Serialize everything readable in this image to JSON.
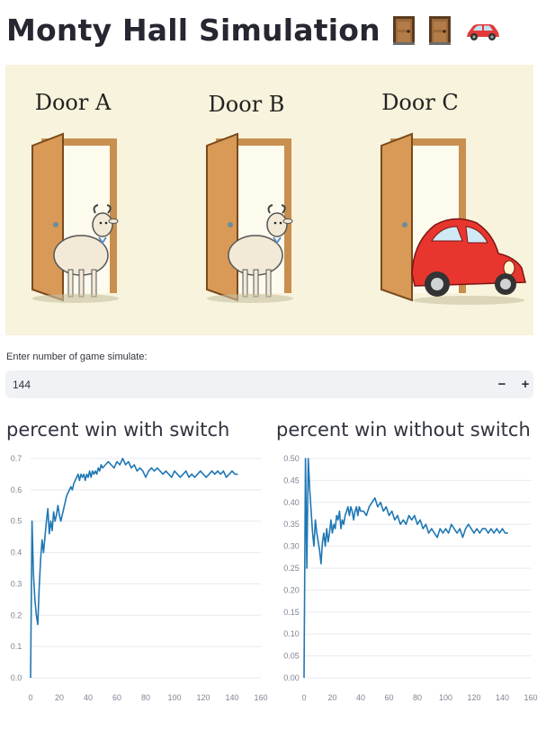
{
  "page": {
    "title": "Monty Hall Simulation",
    "title_icons": [
      "door-icon",
      "door-icon",
      "car-icon"
    ]
  },
  "illustration": {
    "doors": [
      {
        "label": "Door A",
        "behind": "goat"
      },
      {
        "label": "Door B",
        "behind": "goat"
      },
      {
        "label": "Door C",
        "behind": "car"
      }
    ]
  },
  "input": {
    "label": "Enter number of game simulate:",
    "value": "144",
    "minus_label": "−",
    "plus_label": "+"
  },
  "colors": {
    "line": "#1f77b4",
    "background_illustration": "#f8f3dc",
    "input_background": "#f0f2f6"
  },
  "chart_data": [
    {
      "type": "line",
      "title": "percent win with switch",
      "xlabel": "",
      "ylabel": "",
      "xlim": [
        0,
        160
      ],
      "ylim": [
        0,
        0.7
      ],
      "xticks": [
        "0",
        "20",
        "40",
        "60",
        "80",
        "100",
        "120",
        "140",
        "160"
      ],
      "yticks": [
        "0.0",
        "0.1",
        "0.2",
        "0.3",
        "0.4",
        "0.5",
        "0.6",
        "0.7"
      ],
      "grid": true,
      "x": [
        0,
        1,
        2,
        3,
        4,
        5,
        6,
        7,
        8,
        9,
        10,
        11,
        12,
        13,
        14,
        15,
        16,
        17,
        18,
        19,
        20,
        21,
        22,
        23,
        24,
        25,
        26,
        27,
        28,
        29,
        30,
        31,
        32,
        33,
        34,
        35,
        36,
        37,
        38,
        39,
        40,
        41,
        42,
        43,
        44,
        45,
        46,
        47,
        48,
        49,
        50,
        52,
        54,
        56,
        58,
        60,
        62,
        64,
        66,
        68,
        70,
        72,
        74,
        76,
        78,
        80,
        82,
        84,
        86,
        88,
        90,
        92,
        94,
        96,
        98,
        100,
        102,
        104,
        106,
        108,
        110,
        112,
        114,
        116,
        118,
        120,
        122,
        124,
        126,
        128,
        130,
        132,
        134,
        136,
        138,
        140,
        142,
        144
      ],
      "y": [
        0.0,
        0.5,
        0.33,
        0.25,
        0.2,
        0.17,
        0.29,
        0.38,
        0.44,
        0.4,
        0.45,
        0.5,
        0.54,
        0.46,
        0.5,
        0.47,
        0.53,
        0.5,
        0.52,
        0.55,
        0.52,
        0.5,
        0.52,
        0.54,
        0.56,
        0.58,
        0.59,
        0.6,
        0.61,
        0.6,
        0.62,
        0.63,
        0.64,
        0.65,
        0.63,
        0.65,
        0.64,
        0.65,
        0.63,
        0.65,
        0.64,
        0.66,
        0.64,
        0.66,
        0.65,
        0.66,
        0.65,
        0.67,
        0.66,
        0.68,
        0.67,
        0.68,
        0.69,
        0.68,
        0.67,
        0.69,
        0.68,
        0.7,
        0.68,
        0.69,
        0.67,
        0.68,
        0.66,
        0.67,
        0.66,
        0.64,
        0.66,
        0.67,
        0.66,
        0.67,
        0.66,
        0.65,
        0.66,
        0.65,
        0.64,
        0.66,
        0.65,
        0.64,
        0.65,
        0.66,
        0.64,
        0.65,
        0.64,
        0.65,
        0.66,
        0.65,
        0.64,
        0.65,
        0.66,
        0.65,
        0.66,
        0.65,
        0.66,
        0.64,
        0.65,
        0.66,
        0.65,
        0.65
      ]
    },
    {
      "type": "line",
      "title": "percent win without switch",
      "xlabel": "",
      "ylabel": "",
      "xlim": [
        0,
        160
      ],
      "ylim": [
        0,
        0.5
      ],
      "xticks": [
        "0",
        "20",
        "40",
        "60",
        "80",
        "100",
        "120",
        "140",
        "160"
      ],
      "yticks": [
        "0.00",
        "0.05",
        "0.10",
        "0.15",
        "0.20",
        "0.25",
        "0.30",
        "0.35",
        "0.40",
        "0.45",
        "0.50"
      ],
      "grid": true,
      "x": [
        0,
        1,
        2,
        3,
        4,
        5,
        6,
        7,
        8,
        9,
        10,
        11,
        12,
        13,
        14,
        15,
        16,
        17,
        18,
        19,
        20,
        21,
        22,
        23,
        24,
        25,
        26,
        27,
        28,
        29,
        30,
        31,
        32,
        33,
        34,
        35,
        36,
        37,
        38,
        39,
        40,
        42,
        44,
        46,
        48,
        50,
        52,
        54,
        56,
        58,
        60,
        62,
        64,
        66,
        68,
        70,
        72,
        74,
        76,
        78,
        80,
        82,
        84,
        86,
        88,
        90,
        92,
        94,
        96,
        98,
        100,
        102,
        104,
        106,
        108,
        110,
        112,
        114,
        116,
        118,
        120,
        122,
        124,
        126,
        128,
        130,
        132,
        134,
        136,
        138,
        140,
        142,
        144
      ],
      "y": [
        0.0,
        0.5,
        0.25,
        0.5,
        0.43,
        0.38,
        0.33,
        0.3,
        0.36,
        0.33,
        0.31,
        0.29,
        0.26,
        0.31,
        0.33,
        0.3,
        0.34,
        0.31,
        0.33,
        0.36,
        0.33,
        0.35,
        0.34,
        0.37,
        0.36,
        0.38,
        0.34,
        0.36,
        0.35,
        0.37,
        0.38,
        0.39,
        0.37,
        0.39,
        0.38,
        0.36,
        0.38,
        0.39,
        0.37,
        0.39,
        0.38,
        0.38,
        0.37,
        0.39,
        0.4,
        0.41,
        0.39,
        0.4,
        0.38,
        0.39,
        0.37,
        0.38,
        0.36,
        0.37,
        0.35,
        0.36,
        0.35,
        0.37,
        0.36,
        0.37,
        0.35,
        0.36,
        0.34,
        0.35,
        0.33,
        0.34,
        0.33,
        0.32,
        0.34,
        0.33,
        0.34,
        0.33,
        0.35,
        0.34,
        0.33,
        0.34,
        0.32,
        0.34,
        0.35,
        0.34,
        0.33,
        0.34,
        0.33,
        0.34,
        0.34,
        0.33,
        0.34,
        0.33,
        0.34,
        0.33,
        0.34,
        0.33,
        0.33
      ]
    }
  ]
}
